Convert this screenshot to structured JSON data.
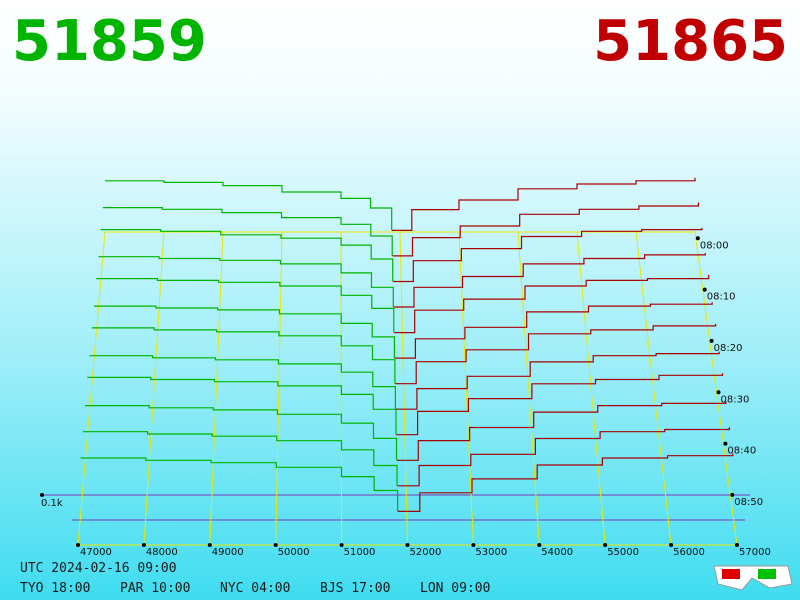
{
  "chart_data": {
    "type": "depth3d",
    "bid_price": 51859,
    "ask_price": 51865,
    "bid_color": "#00b400",
    "ask_color": "#a80000",
    "xlim": [
      47000,
      57000
    ],
    "xticks": [
      47000,
      48000,
      49000,
      50000,
      51000,
      52000,
      53000,
      54000,
      55000,
      56000,
      57000
    ],
    "time_ticks": [
      "08:00",
      "08:10",
      "08:20",
      "08:30",
      "08:40",
      "08:50"
    ],
    "depth_label": "0.1k",
    "bid_prices": [
      47000,
      48000,
      49000,
      50000,
      51000,
      51500,
      51859
    ],
    "ask_prices": [
      51865,
      52200,
      53000,
      54000,
      55000,
      56000,
      57000
    ],
    "bid_depth": [
      [
        0.32,
        0.31,
        0.29,
        0.25,
        0.21,
        0.15,
        0.01
      ],
      [
        0.3,
        0.29,
        0.27,
        0.24,
        0.2,
        0.13,
        0.01
      ],
      [
        0.31,
        0.3,
        0.28,
        0.26,
        0.22,
        0.14,
        0.01
      ],
      [
        0.29,
        0.28,
        0.27,
        0.25,
        0.2,
        0.12,
        0.01
      ],
      [
        0.3,
        0.29,
        0.28,
        0.26,
        0.21,
        0.14,
        0.01
      ],
      [
        0.28,
        0.27,
        0.26,
        0.24,
        0.19,
        0.12,
        0.01
      ],
      [
        0.29,
        0.28,
        0.27,
        0.25,
        0.2,
        0.13,
        0.01
      ],
      [
        0.27,
        0.26,
        0.25,
        0.23,
        0.19,
        0.12,
        0.01
      ],
      [
        0.28,
        0.27,
        0.26,
        0.24,
        0.2,
        0.13,
        0.01
      ],
      [
        0.26,
        0.25,
        0.24,
        0.22,
        0.18,
        0.11,
        0.01
      ],
      [
        0.25,
        0.24,
        0.23,
        0.21,
        0.17,
        0.1,
        0.01
      ],
      [
        0.24,
        0.23,
        0.22,
        0.2,
        0.16,
        0.1,
        0.01
      ]
    ],
    "ask_depth": [
      [
        0.01,
        0.14,
        0.2,
        0.27,
        0.3,
        0.32,
        0.34
      ],
      [
        0.01,
        0.12,
        0.19,
        0.26,
        0.29,
        0.31,
        0.33
      ],
      [
        0.01,
        0.13,
        0.2,
        0.27,
        0.3,
        0.31,
        0.32
      ],
      [
        0.01,
        0.12,
        0.18,
        0.25,
        0.28,
        0.3,
        0.31
      ],
      [
        0.01,
        0.13,
        0.19,
        0.26,
        0.29,
        0.3,
        0.32
      ],
      [
        0.01,
        0.11,
        0.17,
        0.25,
        0.28,
        0.29,
        0.3
      ],
      [
        0.01,
        0.12,
        0.18,
        0.26,
        0.28,
        0.3,
        0.31
      ],
      [
        0.01,
        0.11,
        0.17,
        0.24,
        0.27,
        0.28,
        0.29
      ],
      [
        0.01,
        0.12,
        0.18,
        0.25,
        0.27,
        0.29,
        0.3
      ],
      [
        0.01,
        0.1,
        0.16,
        0.23,
        0.26,
        0.27,
        0.28
      ],
      [
        0.01,
        0.1,
        0.15,
        0.22,
        0.25,
        0.26,
        0.27
      ],
      [
        0.01,
        0.09,
        0.15,
        0.21,
        0.24,
        0.25,
        0.26
      ]
    ],
    "utc": "UTC 2024-02-16 09:00",
    "zones": [
      "TYO 18:00",
      "PAR 10:00",
      "NYC 04:00",
      "BJS 17:00",
      "LON 09:00"
    ]
  }
}
